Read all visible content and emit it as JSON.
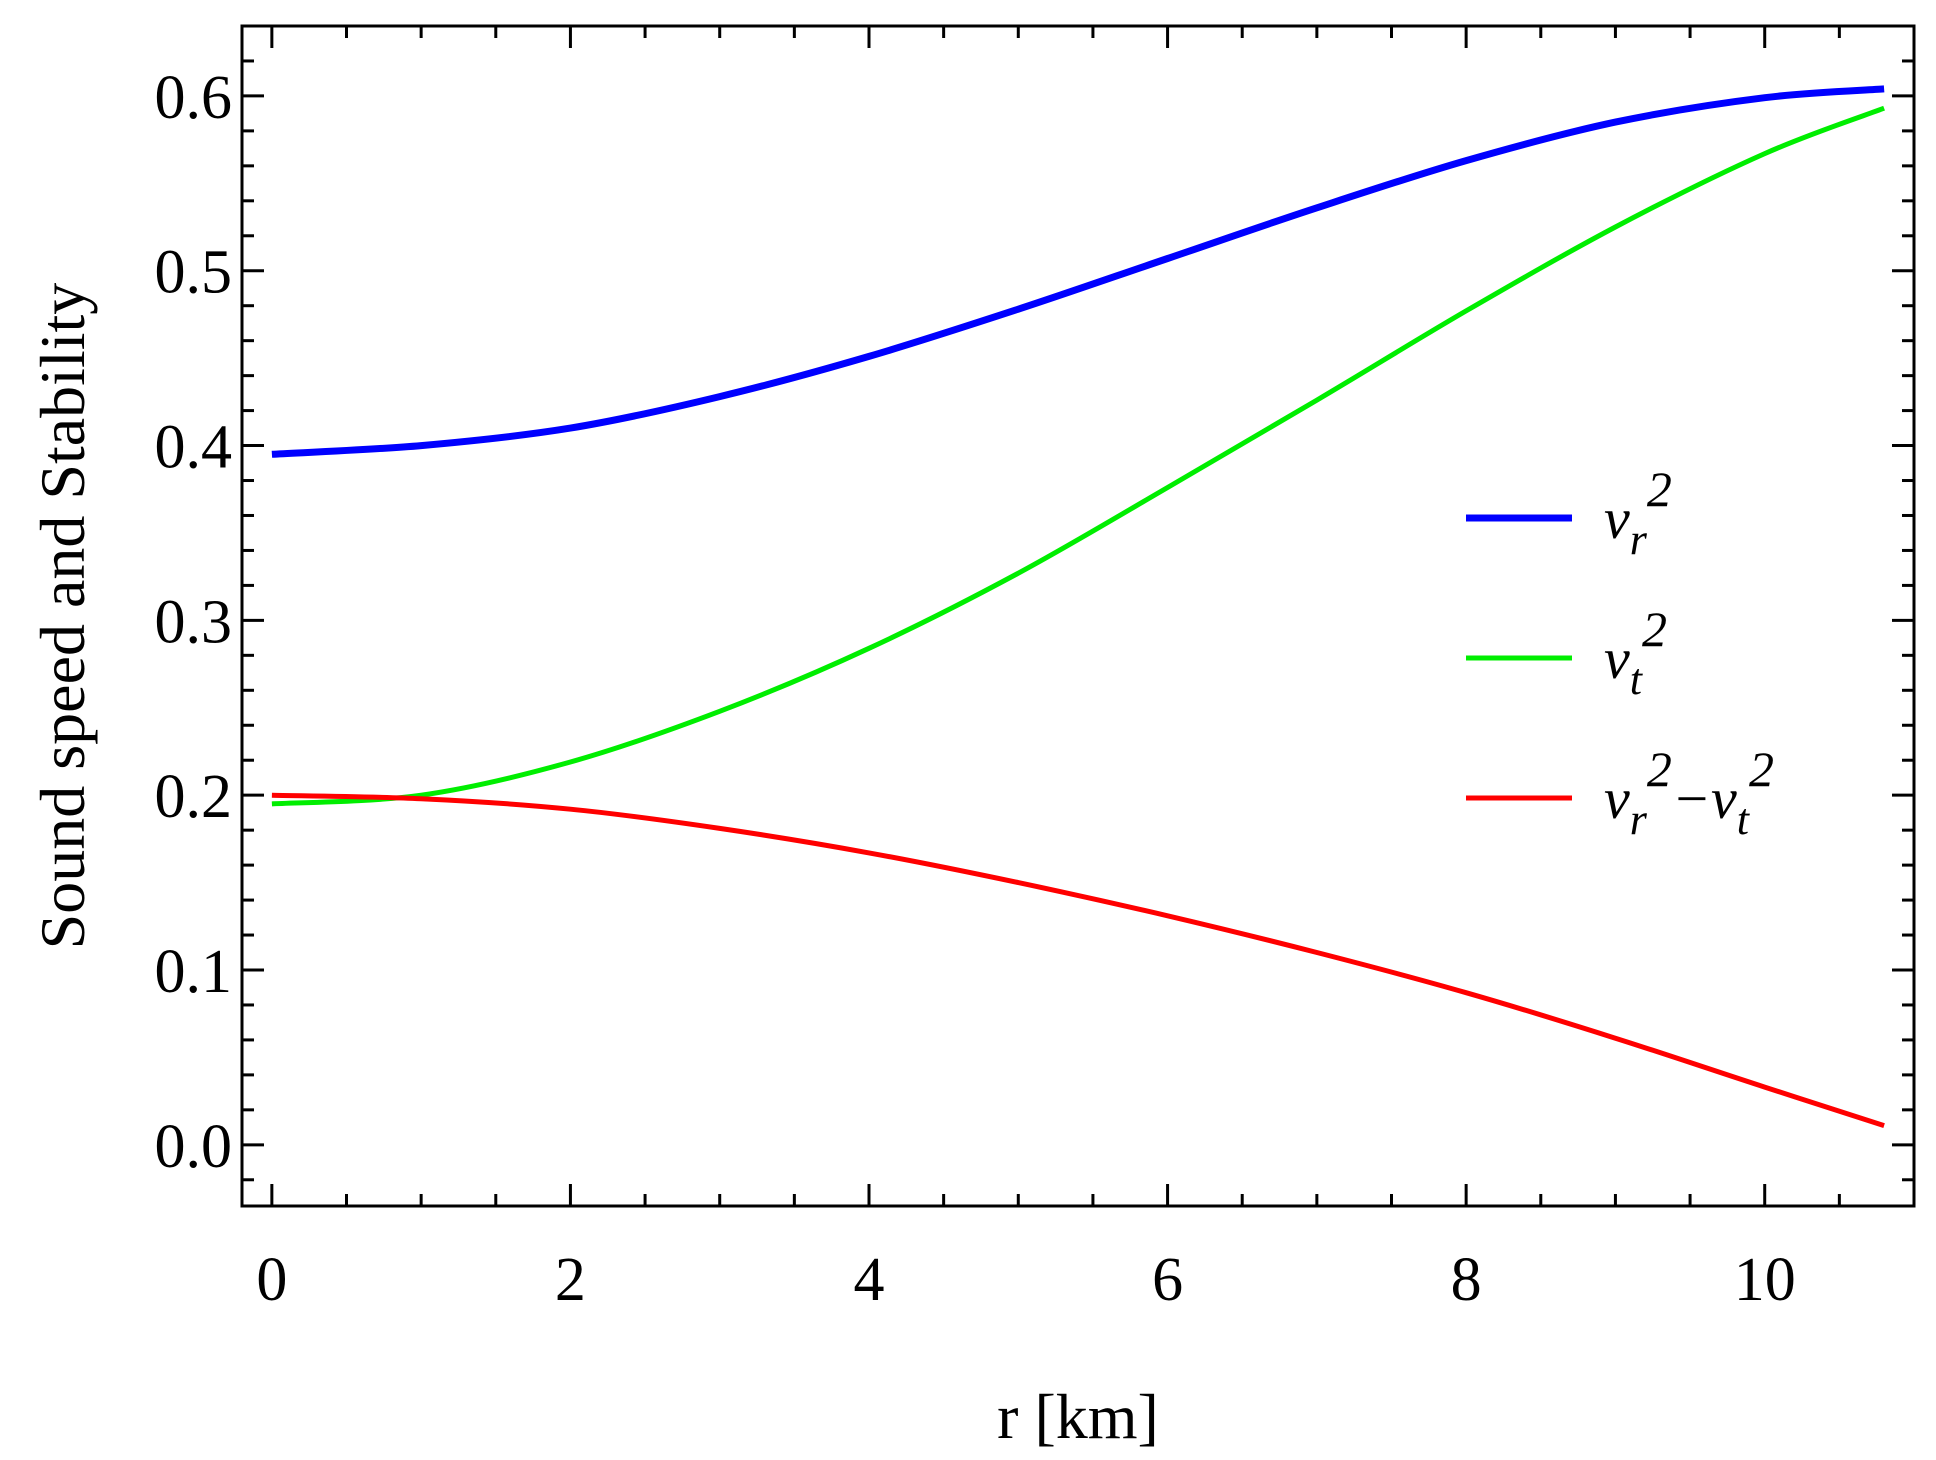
{
  "chart_data": {
    "type": "line",
    "title": "",
    "xlabel": "r [km]",
    "ylabel": "Sound speed and Stability",
    "xlim": [
      -0.2,
      11.0
    ],
    "ylim": [
      -0.035,
      0.64
    ],
    "x_ticks": [
      0,
      2,
      4,
      6,
      8,
      10
    ],
    "x_tick_labels": [
      "0",
      "2",
      "4",
      "6",
      "8",
      "10"
    ],
    "y_ticks": [
      0.0,
      0.1,
      0.2,
      0.3,
      0.4,
      0.5,
      0.6
    ],
    "y_tick_labels": [
      "0.0",
      "0.1",
      "0.2",
      "0.3",
      "0.4",
      "0.5",
      "0.6"
    ],
    "grid": false,
    "legend_position": "right-middle",
    "x": [
      0,
      1,
      2,
      3,
      4,
      5,
      6,
      7,
      8,
      9,
      10,
      10.8
    ],
    "series": [
      {
        "name": "v_r^2",
        "legend": {
          "base": "v",
          "sub": "r",
          "sup": "2"
        },
        "color": "#0000ff",
        "values": [
          0.395,
          0.4,
          0.41,
          0.428,
          0.451,
          0.478,
          0.507,
          0.536,
          0.563,
          0.585,
          0.599,
          0.604
        ]
      },
      {
        "name": "v_t^2",
        "legend": {
          "base": "v",
          "sub": "t",
          "sup": "2"
        },
        "color": "#00ee00",
        "values": [
          0.195,
          0.2,
          0.219,
          0.248,
          0.284,
          0.327,
          0.376,
          0.426,
          0.477,
          0.525,
          0.567,
          0.593
        ]
      },
      {
        "name": "v_r^2 - v_t^2",
        "legend": {
          "base": "v",
          "sub": "r",
          "sup": "2",
          "minus": "−",
          "base2": "v",
          "sub2": "t",
          "sup2": "2"
        },
        "color": "#ff0000",
        "values": [
          0.2,
          0.198,
          0.192,
          0.181,
          0.167,
          0.15,
          0.131,
          0.11,
          0.087,
          0.061,
          0.033,
          0.011
        ]
      }
    ]
  }
}
